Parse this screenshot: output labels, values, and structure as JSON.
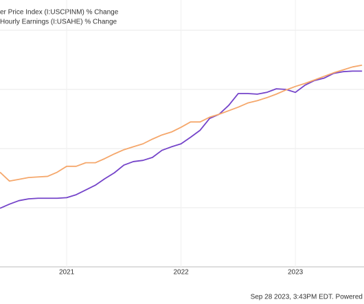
{
  "chart_data": {
    "type": "line",
    "x": [
      2020.417,
      2020.5,
      2020.583,
      2020.667,
      2020.75,
      2020.833,
      2020.917,
      2021,
      2021.083,
      2021.167,
      2021.25,
      2021.333,
      2021.417,
      2021.5,
      2021.583,
      2021.667,
      2021.75,
      2021.833,
      2021.917,
      2022,
      2022.083,
      2022.167,
      2022.25,
      2022.333,
      2022.417,
      2022.5,
      2022.583,
      2022.667,
      2022.75,
      2022.833,
      2022.917,
      2023,
      2023.083,
      2023.167,
      2023.25,
      2023.333,
      2023.417,
      2023.5,
      2023.583
    ],
    "series": [
      {
        "name": "er Price Index (I:USCPINM) % Change",
        "color": "#7443c9",
        "values": [
          0.99,
          1.06,
          1.12,
          1.15,
          1.16,
          1.16,
          1.16,
          1.17,
          1.22,
          1.3,
          1.38,
          1.49,
          1.59,
          1.72,
          1.78,
          1.8,
          1.85,
          1.97,
          2.03,
          2.08,
          2.19,
          2.31,
          2.51,
          2.58,
          2.73,
          2.93,
          2.93,
          2.92,
          2.95,
          3.01,
          3.0,
          2.95,
          3.07,
          3.15,
          3.19,
          3.27,
          3.3,
          3.31,
          3.31
        ]
      },
      {
        "name": "Hourly Earnings (I:USAHE) % Change",
        "color": "#f5a76b",
        "values": [
          1.6,
          1.45,
          1.48,
          1.51,
          1.52,
          1.53,
          1.6,
          1.7,
          1.7,
          1.76,
          1.76,
          1.83,
          1.91,
          1.98,
          2.03,
          2.08,
          2.16,
          2.23,
          2.28,
          2.36,
          2.45,
          2.45,
          2.53,
          2.58,
          2.64,
          2.7,
          2.77,
          2.81,
          2.86,
          2.92,
          2.99,
          3.05,
          3.1,
          3.16,
          3.22,
          3.28,
          3.33,
          3.38,
          3.41
        ]
      }
    ],
    "xlim": [
      2020.417,
      2023.6
    ],
    "xticks": [
      2021,
      2022,
      2023
    ],
    "ylim": [
      0,
      4
    ],
    "yticks": [
      0,
      1,
      2,
      3,
      4
    ],
    "grid": true,
    "footer": "Sep 28 2023, 3:43PM EDT. Powered"
  }
}
